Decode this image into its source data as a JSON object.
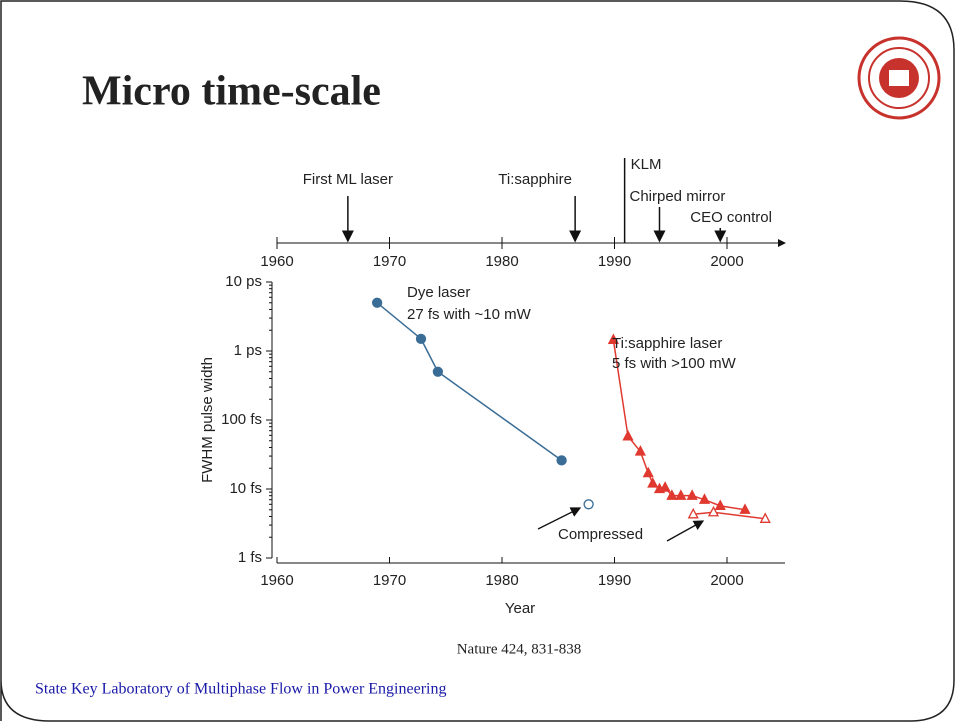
{
  "title": "Micro time-scale",
  "citation": "Nature 424, 831-838",
  "footer": "State Key Laboratory of Multiphase Flow in Power Engineering",
  "chart_data": {
    "type": "line",
    "xlabel": "Year",
    "ylabel": "FWHM pulse width",
    "log_y": true,
    "xlim": [
      1960,
      2005
    ],
    "xticks": [
      1960,
      1970,
      1980,
      1990,
      2000
    ],
    "ylim": [
      1,
      10000
    ],
    "yticks": [
      {
        "value": 1,
        "label": "1 fs"
      },
      {
        "value": 10,
        "label": "10 fs"
      },
      {
        "value": 100,
        "label": "100 fs"
      },
      {
        "value": 1000,
        "label": "1 ps"
      },
      {
        "value": 10000,
        "label": "10 ps"
      }
    ],
    "timeline": {
      "xticks": [
        1960,
        1970,
        1980,
        1990,
        2000
      ],
      "events": [
        {
          "label": "First ML laser",
          "x": 1966.3
        },
        {
          "label": "Ti:sapphire",
          "x": 1986.5
        },
        {
          "label": "KLM",
          "x": 1990.9
        },
        {
          "label": "Chirped mirror",
          "x": 1994
        },
        {
          "label": "CEO control",
          "x": 1999.4
        }
      ]
    },
    "series": [
      {
        "color": "#3a6d96",
        "marker": "circle",
        "filled": true,
        "x": [
          1968.9,
          1972.8,
          1974.3,
          1985.3
        ],
        "values": [
          5000,
          1500,
          500,
          26
        ]
      },
      {
        "color": "#3a6d96",
        "marker": "circle",
        "filled": false,
        "x": [
          1987.7
        ],
        "values": [
          6
        ]
      },
      {
        "color": "#e0392f",
        "marker": "triangle",
        "filled": true,
        "x": [
          1989.9,
          1991.2,
          1992.3,
          1993,
          1993.4,
          1994,
          1994.5,
          1995.1,
          1995.9,
          1996.9,
          1998,
          1999.4,
          2001.6
        ],
        "values": [
          1450,
          58,
          35,
          17,
          12,
          10,
          10.5,
          8,
          8,
          8,
          7,
          5.7,
          5
        ]
      },
      {
        "color": "#e0392f",
        "marker": "triangle",
        "filled": false,
        "x": [
          1997,
          1998.8,
          2003.4
        ],
        "values": [
          4.3,
          4.6,
          3.7
        ]
      }
    ],
    "annotations": [
      "Dye laser",
      "27 fs with ~10 mW",
      "Ti:sapphire laser",
      "5 fs with >100 mW",
      "Compressed"
    ]
  }
}
